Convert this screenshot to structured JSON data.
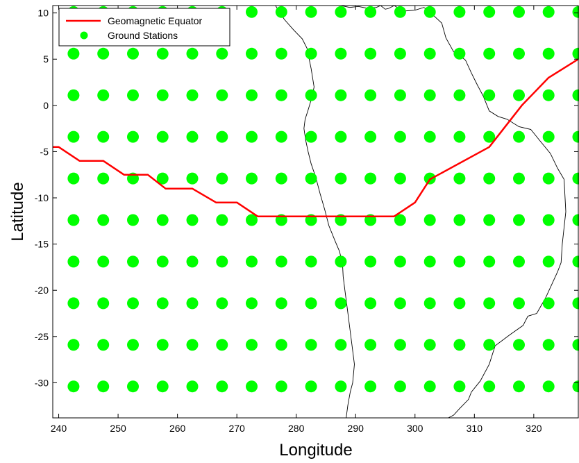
{
  "chart_data": {
    "type": "scatter",
    "xlabel": "Longitude",
    "ylabel": "Latitude",
    "xlim": [
      239,
      327.5
    ],
    "ylim": [
      -33.8,
      10.8
    ],
    "xticks": [
      240,
      250,
      260,
      270,
      280,
      290,
      300,
      310,
      320
    ],
    "yticks": [
      10,
      5,
      0,
      -5,
      -10,
      -15,
      -20,
      -25,
      -30
    ],
    "grid": false,
    "legend": {
      "position": "top-left",
      "entries": [
        "Geomagnetic Equator",
        "Ground Stations"
      ]
    },
    "colors": {
      "equator": "#ff0000",
      "stations": "#00ff00",
      "coastline": "#000000",
      "frame": "#000000"
    },
    "series": [
      {
        "name": "Geomagnetic Equator",
        "kind": "line",
        "x": [
          239,
          240,
          243.5,
          247.5,
          251,
          255,
          258,
          262.5,
          266.5,
          270,
          273.5,
          296.5,
          300,
          302.5,
          312.5,
          318,
          322.5,
          327.5
        ],
        "y": [
          -4.5,
          -4.5,
          -6,
          -6,
          -7.5,
          -7.5,
          -9,
          -9,
          -10.5,
          -10.5,
          -12,
          -12,
          -10.5,
          -8,
          -4.5,
          0,
          3,
          5
        ]
      },
      {
        "name": "Ground Stations",
        "kind": "scatter",
        "lon": [
          242.5,
          247.5,
          252.5,
          257.5,
          262.5,
          267.5,
          272.5,
          277.5,
          282.5,
          287.5,
          292.5,
          297.5,
          302.5,
          307.5,
          312.5,
          317.5,
          322.5,
          327.5
        ],
        "lat": [
          10.1,
          5.6,
          1.1,
          -3.4,
          -7.9,
          -12.4,
          -16.9,
          -21.4,
          -25.9,
          -30.4
        ]
      }
    ],
    "coastlines": [
      {
        "x": [
          276.5,
          277,
          278,
          279.5,
          281,
          281.8,
          282.5,
          283,
          282.7,
          282,
          281.5,
          281.3,
          281.6,
          282,
          282.5,
          283.3,
          284,
          284.8,
          285.5,
          286.5,
          287.3,
          287.8,
          287.9,
          288.2,
          288.6,
          289,
          289.4,
          289.8,
          289.5,
          289.1,
          288.7,
          288.4
        ],
        "y": [
          10.8,
          10.3,
          9.3,
          8.2,
          7.2,
          6.2,
          4,
          2,
          1,
          -0.5,
          -1.5,
          -2.5,
          -3.8,
          -5,
          -6.3,
          -7.8,
          -9.5,
          -11.3,
          -13,
          -14.6,
          -15.8,
          -17.2,
          -18.5,
          -20,
          -22,
          -24,
          -26,
          -28,
          -30,
          -31,
          -32.4,
          -33.8
        ]
      },
      {
        "x": [
          287.5,
          289,
          290.5,
          292,
          293.5,
          294.2,
          295,
          295.6,
          296.5,
          298,
          300,
          301.5,
          303,
          304.5,
          305.2,
          306.5,
          307.5,
          308.5,
          309.5,
          310.5,
          311.5,
          312.5,
          314,
          315.5,
          317.5,
          319.5,
          321,
          322.8,
          324,
          325.1,
          325.4,
          324.8,
          324.6,
          324,
          322,
          320.5,
          319,
          318.2,
          316,
          313.5,
          312.5,
          311,
          309.5,
          309,
          307.5,
          306.5,
          305.6
        ],
        "y": [
          10.8,
          10.6,
          10.7,
          10.5,
          10.6,
          10.8,
          10.4,
          10.5,
          10.8,
          10.2,
          10.3,
          10.6,
          9.8,
          8.9,
          7.3,
          5.8,
          5.4,
          4.9,
          3.5,
          2.2,
          1,
          -0.6,
          -1.2,
          -1.5,
          -2.3,
          -2.6,
          -3.8,
          -5.2,
          -6.8,
          -8,
          -11.5,
          -15,
          -17,
          -18,
          -20.8,
          -22.5,
          -22.8,
          -23.8,
          -24.8,
          -26,
          -28,
          -29.8,
          -31,
          -31.8,
          -32.8,
          -33.5,
          -33.8
        ]
      }
    ]
  }
}
